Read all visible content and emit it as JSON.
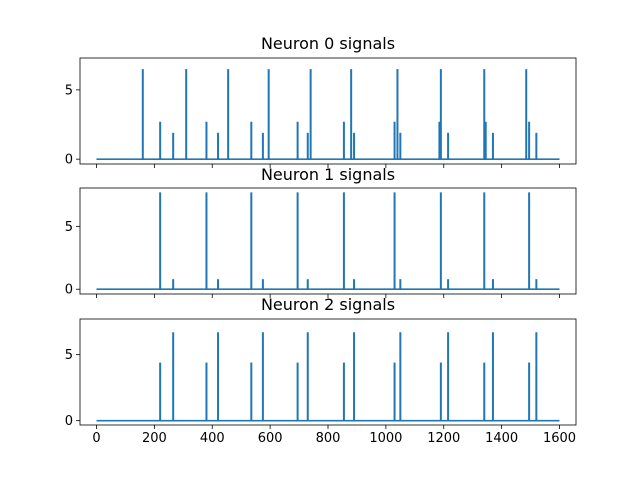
{
  "chart_data": [
    {
      "type": "line",
      "title": "Neuron 0 signals",
      "xlim": [
        -57,
        1657
      ],
      "ylim": [
        -0.35,
        7.3
      ],
      "yticks": [
        0,
        5
      ],
      "show_xticklabels": false,
      "color": "#1f77b4",
      "baseline": 0,
      "spikes": [
        {
          "x": 160,
          "y": 6.5
        },
        {
          "x": 220,
          "y": 2.7
        },
        {
          "x": 265,
          "y": 1.9
        },
        {
          "x": 310,
          "y": 6.5
        },
        {
          "x": 380,
          "y": 2.7
        },
        {
          "x": 420,
          "y": 1.9
        },
        {
          "x": 455,
          "y": 6.5
        },
        {
          "x": 535,
          "y": 2.7
        },
        {
          "x": 575,
          "y": 1.9
        },
        {
          "x": 595,
          "y": 6.5
        },
        {
          "x": 695,
          "y": 2.7
        },
        {
          "x": 730,
          "y": 1.9
        },
        {
          "x": 740,
          "y": 6.5
        },
        {
          "x": 855,
          "y": 2.7
        },
        {
          "x": 880,
          "y": 6.5
        },
        {
          "x": 890,
          "y": 1.9
        },
        {
          "x": 1030,
          "y": 2.7
        },
        {
          "x": 1040,
          "y": 6.5
        },
        {
          "x": 1050,
          "y": 1.9
        },
        {
          "x": 1185,
          "y": 2.7
        },
        {
          "x": 1190,
          "y": 6.5
        },
        {
          "x": 1215,
          "y": 1.9
        },
        {
          "x": 1340,
          "y": 6.5
        },
        {
          "x": 1345,
          "y": 2.7
        },
        {
          "x": 1370,
          "y": 1.9
        },
        {
          "x": 1485,
          "y": 6.5
        },
        {
          "x": 1495,
          "y": 2.7
        },
        {
          "x": 1520,
          "y": 1.9
        }
      ],
      "x_end": 1600
    },
    {
      "type": "line",
      "title": "Neuron 1 signals",
      "xlim": [
        -57,
        1657
      ],
      "ylim": [
        -0.38,
        8.05
      ],
      "yticks": [
        0,
        5
      ],
      "show_xticklabels": false,
      "color": "#1f77b4",
      "baseline": 0,
      "spikes": [
        {
          "x": 220,
          "y": 7.7
        },
        {
          "x": 265,
          "y": 0.8
        },
        {
          "x": 380,
          "y": 7.7
        },
        {
          "x": 420,
          "y": 0.8
        },
        {
          "x": 535,
          "y": 7.7
        },
        {
          "x": 575,
          "y": 0.8
        },
        {
          "x": 695,
          "y": 7.7
        },
        {
          "x": 730,
          "y": 0.8
        },
        {
          "x": 855,
          "y": 7.7
        },
        {
          "x": 890,
          "y": 0.8
        },
        {
          "x": 1030,
          "y": 7.7
        },
        {
          "x": 1050,
          "y": 0.8
        },
        {
          "x": 1190,
          "y": 7.7
        },
        {
          "x": 1215,
          "y": 0.8
        },
        {
          "x": 1340,
          "y": 7.7
        },
        {
          "x": 1370,
          "y": 0.8
        },
        {
          "x": 1495,
          "y": 7.7
        },
        {
          "x": 1520,
          "y": 0.8
        }
      ],
      "x_end": 1600
    },
    {
      "type": "line",
      "title": "Neuron 2 signals",
      "xlim": [
        -57,
        1657
      ],
      "ylim": [
        -0.33,
        7.7
      ],
      "yticks": [
        0,
        5
      ],
      "xticks": [
        0,
        200,
        400,
        600,
        800,
        1000,
        1200,
        1400,
        1600
      ],
      "show_xticklabels": true,
      "color": "#1f77b4",
      "baseline": 0,
      "spikes": [
        {
          "x": 220,
          "y": 4.4
        },
        {
          "x": 265,
          "y": 6.7
        },
        {
          "x": 380,
          "y": 4.4
        },
        {
          "x": 420,
          "y": 6.7
        },
        {
          "x": 535,
          "y": 4.4
        },
        {
          "x": 575,
          "y": 6.7
        },
        {
          "x": 695,
          "y": 4.4
        },
        {
          "x": 730,
          "y": 6.7
        },
        {
          "x": 855,
          "y": 4.4
        },
        {
          "x": 890,
          "y": 6.7
        },
        {
          "x": 1030,
          "y": 4.4
        },
        {
          "x": 1050,
          "y": 6.7
        },
        {
          "x": 1190,
          "y": 4.4
        },
        {
          "x": 1215,
          "y": 6.7
        },
        {
          "x": 1340,
          "y": 4.4
        },
        {
          "x": 1370,
          "y": 6.7
        },
        {
          "x": 1495,
          "y": 4.4
        },
        {
          "x": 1520,
          "y": 6.7
        }
      ],
      "x_end": 1600
    }
  ]
}
